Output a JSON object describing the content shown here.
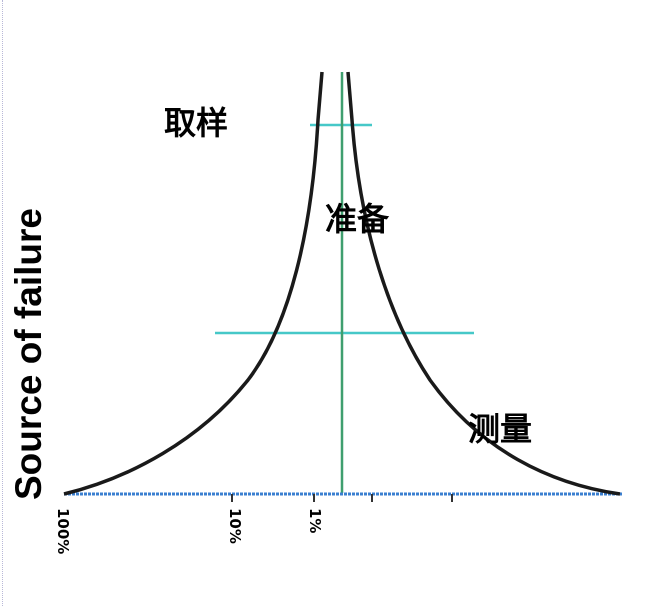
{
  "diagram": {
    "y_axis_label": "Source of failure",
    "zones": [
      {
        "id": "sampling",
        "label": "取样"
      },
      {
        "id": "preparation",
        "label": "准备"
      },
      {
        "id": "measurement",
        "label": "测量"
      }
    ],
    "x_ticks": [
      "100%",
      "10%",
      "1%"
    ],
    "colors": {
      "curve": "#1a1a1a",
      "axis_line": "#3a7fd0",
      "horizontal_lines": "#46c8c8",
      "center_line": "#3f9f6f"
    }
  }
}
